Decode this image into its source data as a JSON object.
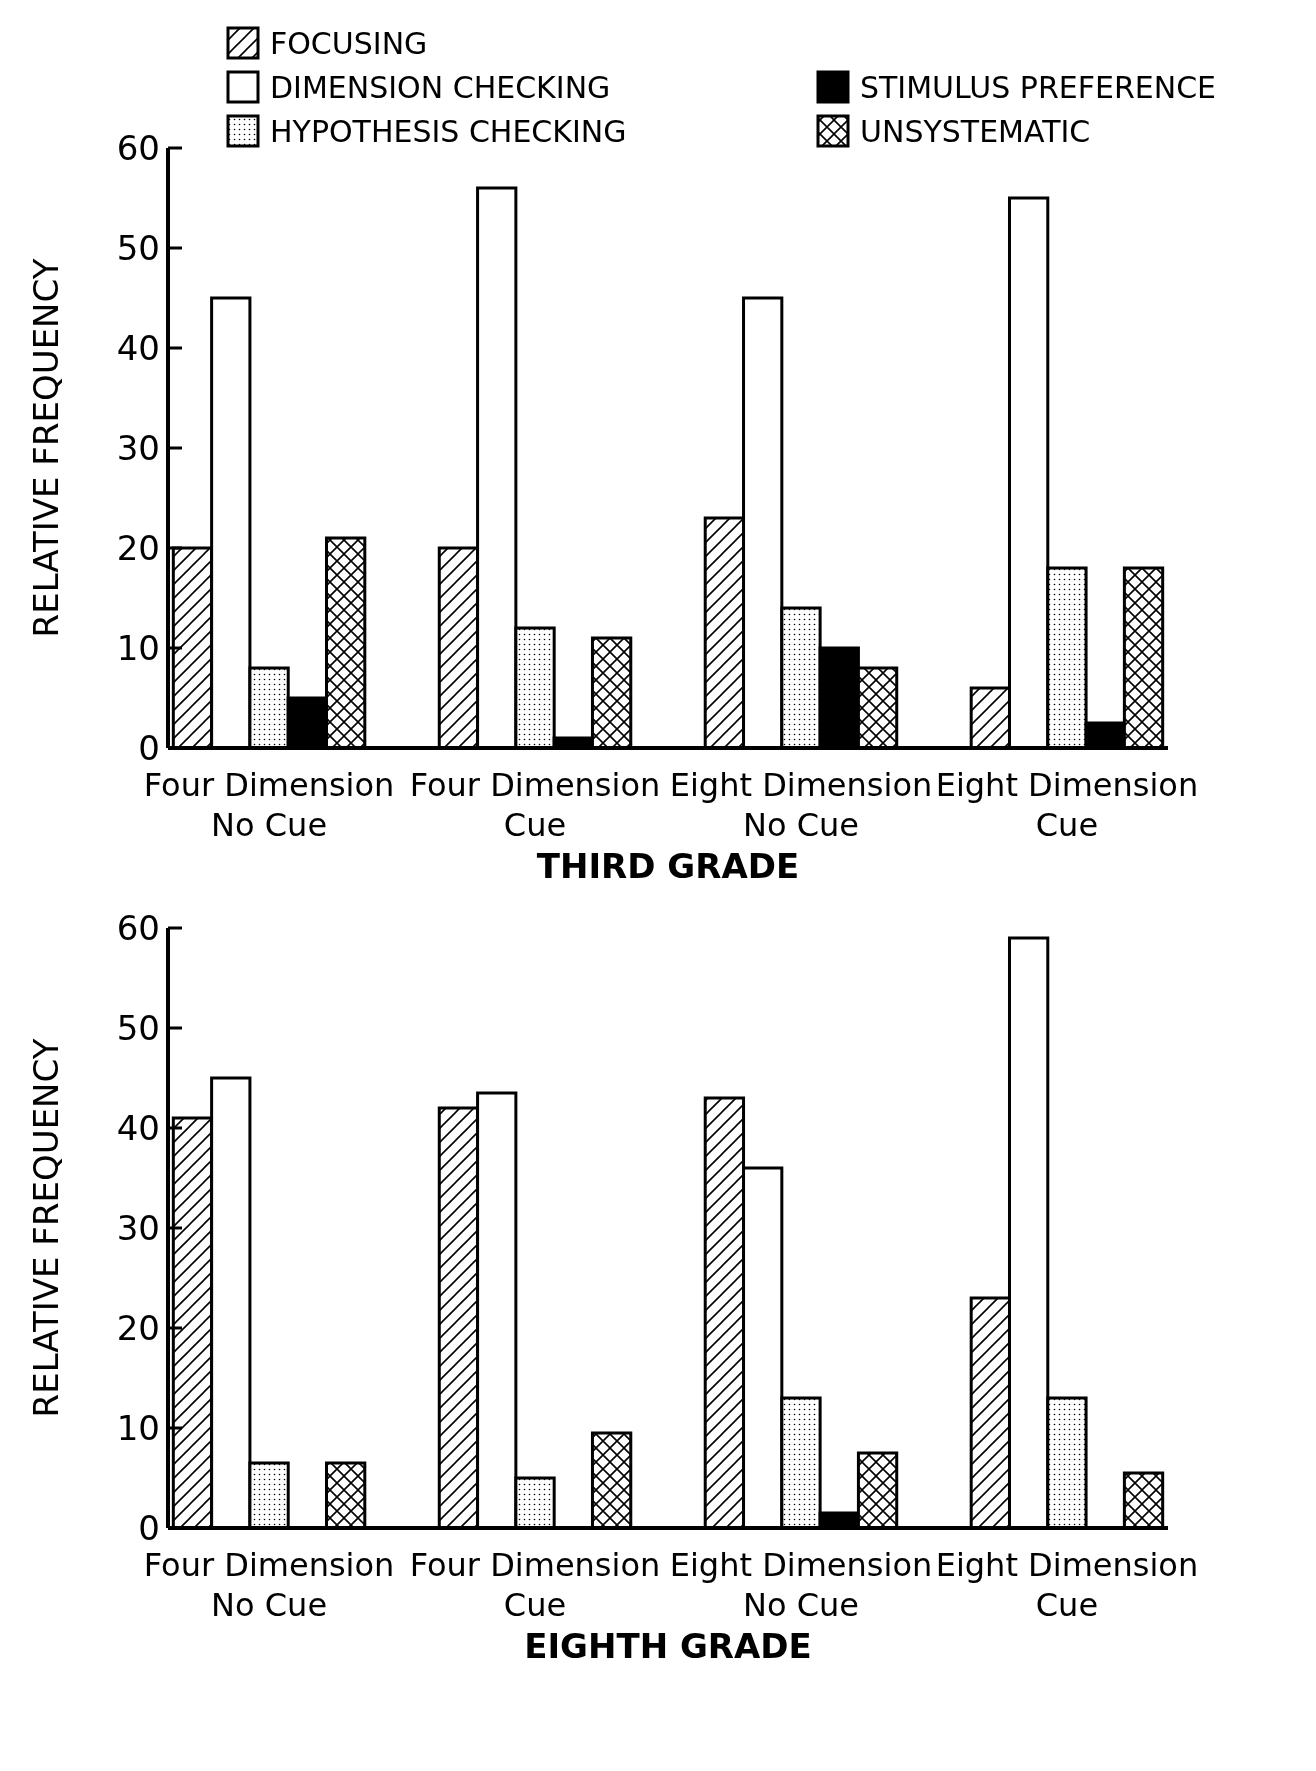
{
  "chart_data": [
    {
      "type": "bar",
      "xlabel": "THIRD GRADE",
      "ylabel": "RELATIVE FREQUENCY",
      "categories": [
        "Four Dimension\nNo Cue",
        "Four Dimension\nCue",
        "Eight Dimension\nNo Cue",
        "Eight Dimension\nCue"
      ],
      "ylim": [
        0,
        60
      ],
      "yticks": [
        0,
        10,
        20,
        30,
        40,
        50,
        60
      ],
      "legend": "top",
      "series": [
        {
          "name": "FOCUSING",
          "color": "#000000",
          "values": [
            20,
            20,
            23,
            6
          ]
        },
        {
          "name": "DIMENSION CHECKING",
          "color": "#ffffff",
          "values": [
            45,
            56,
            45,
            55
          ]
        },
        {
          "name": "HYPOTHESIS CHECKING",
          "color": "#000000",
          "values": [
            8,
            12,
            14,
            18
          ]
        },
        {
          "name": "STIMULUS PREFERENCE",
          "color": "#000000",
          "values": [
            5,
            1,
            10,
            2.5
          ]
        },
        {
          "name": "UNSYSTEMATIC",
          "color": "#000000",
          "values": [
            21,
            11,
            8,
            18
          ]
        }
      ]
    },
    {
      "type": "bar",
      "xlabel": "EIGHTH GRADE",
      "ylabel": "RELATIVE FREQUENCY",
      "categories": [
        "Four Dimension\nNo Cue",
        "Four Dimension\nCue",
        "Eight Dimension\nNo Cue",
        "Eight Dimension\nCue"
      ],
      "ylim": [
        0,
        60
      ],
      "yticks": [
        0,
        10,
        20,
        30,
        40,
        50,
        60
      ],
      "series": [
        {
          "color": "#000000",
          "values": [
            41,
            42,
            43,
            23
          ]
        },
        {
          "color": "#ffffff",
          "values": [
            45,
            43.5,
            36,
            59
          ]
        },
        {
          "color": "#000000",
          "values": [
            6.5,
            5,
            13,
            13
          ]
        },
        {
          "color": "#000000",
          "values": [
            null,
            null,
            1.5,
            null
          ]
        },
        {
          "color": "#000000",
          "values": [
            6.5,
            9.5,
            7.5,
            5.5
          ]
        }
      ]
    }
  ]
}
